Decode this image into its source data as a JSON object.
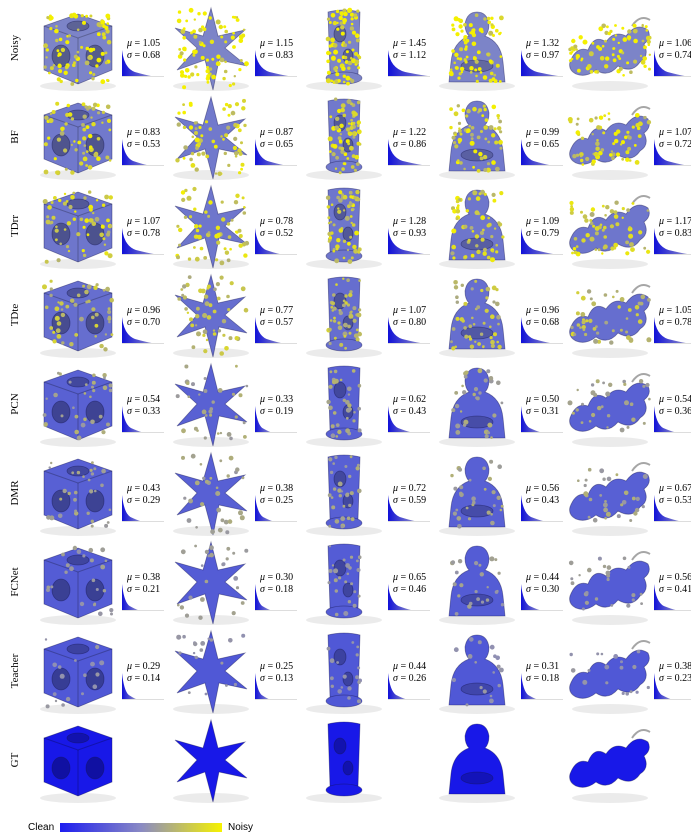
{
  "colors": {
    "clean": "#2020e0",
    "mid": "#8888c0",
    "noisy": "#f4f000"
  },
  "legend": {
    "clean_label": "Clean",
    "noisy_label": "Noisy"
  },
  "models": [
    "cube",
    "star",
    "column",
    "buddha",
    "dragon"
  ],
  "rows": [
    {
      "label": "Noisy",
      "noise": 1.0,
      "stats": [
        {
          "mu": "1.05",
          "sigma": "0.68"
        },
        {
          "mu": "1.15",
          "sigma": "0.83"
        },
        {
          "mu": "1.45",
          "sigma": "1.12"
        },
        {
          "mu": "1.32",
          "sigma": "0.97"
        },
        {
          "mu": "1.06",
          "sigma": "0.74"
        }
      ]
    },
    {
      "label": "BF",
      "noise": 0.78,
      "stats": [
        {
          "mu": "0.83",
          "sigma": "0.53"
        },
        {
          "mu": "0.87",
          "sigma": "0.65"
        },
        {
          "mu": "1.22",
          "sigma": "0.86"
        },
        {
          "mu": "0.99",
          "sigma": "0.65"
        },
        {
          "mu": "1.07",
          "sigma": "0.72"
        }
      ]
    },
    {
      "label": "TDrr",
      "noise": 0.72,
      "stats": [
        {
          "mu": "1.07",
          "sigma": "0.78"
        },
        {
          "mu": "0.78",
          "sigma": "0.52"
        },
        {
          "mu": "1.28",
          "sigma": "0.93"
        },
        {
          "mu": "1.09",
          "sigma": "0.79"
        },
        {
          "mu": "1.17",
          "sigma": "0.83"
        }
      ]
    },
    {
      "label": "TDte",
      "noise": 0.55,
      "stats": [
        {
          "mu": "0.96",
          "sigma": "0.70"
        },
        {
          "mu": "0.77",
          "sigma": "0.57"
        },
        {
          "mu": "1.07",
          "sigma": "0.80"
        },
        {
          "mu": "0.96",
          "sigma": "0.68"
        },
        {
          "mu": "1.05",
          "sigma": "0.78"
        }
      ]
    },
    {
      "label": "PCN",
      "noise": 0.3,
      "stats": [
        {
          "mu": "0.54",
          "sigma": "0.33"
        },
        {
          "mu": "0.33",
          "sigma": "0.19"
        },
        {
          "mu": "0.62",
          "sigma": "0.43"
        },
        {
          "mu": "0.50",
          "sigma": "0.31"
        },
        {
          "mu": "0.54",
          "sigma": "0.36"
        }
      ]
    },
    {
      "label": "DMR",
      "noise": 0.28,
      "stats": [
        {
          "mu": "0.43",
          "sigma": "0.29"
        },
        {
          "mu": "0.38",
          "sigma": "0.25"
        },
        {
          "mu": "0.72",
          "sigma": "0.59"
        },
        {
          "mu": "0.56",
          "sigma": "0.43"
        },
        {
          "mu": "0.67",
          "sigma": "0.53"
        }
      ]
    },
    {
      "label": "FCNet",
      "noise": 0.2,
      "stats": [
        {
          "mu": "0.38",
          "sigma": "0.21"
        },
        {
          "mu": "0.30",
          "sigma": "0.18"
        },
        {
          "mu": "0.65",
          "sigma": "0.46"
        },
        {
          "mu": "0.44",
          "sigma": "0.30"
        },
        {
          "mu": "0.56",
          "sigma": "0.41"
        }
      ]
    },
    {
      "label": "Teacher",
      "noise": 0.12,
      "stats": [
        {
          "mu": "0.29",
          "sigma": "0.14"
        },
        {
          "mu": "0.25",
          "sigma": "0.13"
        },
        {
          "mu": "0.44",
          "sigma": "0.26"
        },
        {
          "mu": "0.31",
          "sigma": "0.18"
        },
        {
          "mu": "0.38",
          "sigma": "0.23"
        }
      ]
    },
    {
      "label": "GT",
      "noise": 0.0,
      "stats": []
    }
  ]
}
